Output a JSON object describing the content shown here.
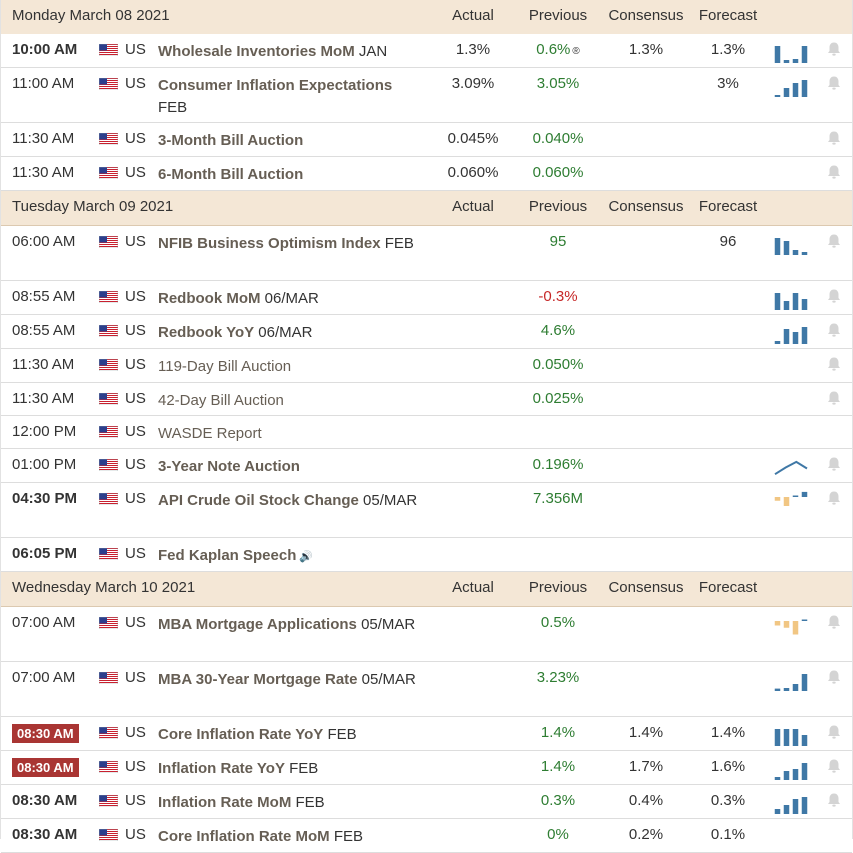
{
  "columns": {
    "actual": "Actual",
    "previous": "Previous",
    "consensus": "Consensus",
    "forecast": "Forecast"
  },
  "revised_mark": "®",
  "rows": [
    {
      "type": "header",
      "date": "Monday March 08 2021"
    },
    {
      "type": "event",
      "time": "10:00 AM",
      "time_style": "bold",
      "country": "US",
      "event": "Wholesale Inventories MoM",
      "ref": "JAN",
      "event_bold": true,
      "actual": "1.3%",
      "previous": "0.6%",
      "revised": true,
      "consensus": "1.3%",
      "forecast": "1.3%",
      "spark": {
        "kind": "bars",
        "color": "#3f78a6",
        "values": [
          0.85,
          0.15,
          0.2,
          0.85
        ]
      },
      "bell": true,
      "h": 34
    },
    {
      "type": "event",
      "time": "11:00 AM",
      "time_style": "normal",
      "country": "US",
      "event": "Consumer Inflation Expectations",
      "ref": "FEB",
      "event_bold": true,
      "actual": "3.09%",
      "previous": "3.05%",
      "consensus": "",
      "forecast": "3%",
      "spark": {
        "kind": "bars",
        "color": "#3f78a6",
        "values": [
          0.1,
          0.45,
          0.7,
          0.85
        ]
      },
      "bell": true,
      "h": 55
    },
    {
      "type": "event",
      "time": "11:30 AM",
      "time_style": "normal",
      "country": "US",
      "event": "3-Month Bill Auction",
      "ref": "",
      "event_bold": true,
      "actual": "0.045%",
      "previous": "0.040%",
      "consensus": "",
      "forecast": "",
      "spark": null,
      "bell": true,
      "h": 34
    },
    {
      "type": "event",
      "time": "11:30 AM",
      "time_style": "normal",
      "country": "US",
      "event": "6-Month Bill Auction",
      "ref": "",
      "event_bold": true,
      "actual": "0.060%",
      "previous": "0.060%",
      "consensus": "",
      "forecast": "",
      "spark": null,
      "bell": true,
      "h": 34
    },
    {
      "type": "header",
      "date": "Tuesday March 09 2021"
    },
    {
      "type": "event",
      "time": "06:00 AM",
      "time_style": "normal",
      "country": "US",
      "event": "NFIB Business Optimism Index",
      "ref": "FEB",
      "event_bold": true,
      "actual": "",
      "previous": "95",
      "consensus": "",
      "forecast": "96",
      "spark": {
        "kind": "bars",
        "color": "#3f78a6",
        "values": [
          0.85,
          0.7,
          0.25,
          0.15
        ]
      },
      "bell": true,
      "h": 55
    },
    {
      "type": "event",
      "time": "08:55 AM",
      "time_style": "normal",
      "country": "US",
      "event": "Redbook MoM",
      "ref": "06/MAR",
      "event_bold": true,
      "actual": "",
      "previous": "-0.3%",
      "previous_neg": true,
      "consensus": "",
      "forecast": "",
      "spark": {
        "kind": "bars",
        "color": "#3f78a6",
        "values": [
          0.85,
          0.45,
          0.85,
          0.55
        ]
      },
      "bell": true,
      "h": 34
    },
    {
      "type": "event",
      "time": "08:55 AM",
      "time_style": "normal",
      "country": "US",
      "event": "Redbook YoY",
      "ref": "06/MAR",
      "event_bold": true,
      "actual": "",
      "previous": "4.6%",
      "consensus": "",
      "forecast": "",
      "spark": {
        "kind": "bars",
        "color": "#3f78a6",
        "values": [
          0.15,
          0.75,
          0.6,
          0.85
        ]
      },
      "bell": true,
      "h": 34
    },
    {
      "type": "event",
      "time": "11:30 AM",
      "time_style": "normal",
      "country": "US",
      "event": "119-Day Bill Auction",
      "ref": "",
      "event_bold": false,
      "actual": "",
      "previous": "0.050%",
      "consensus": "",
      "forecast": "",
      "spark": null,
      "bell": true,
      "h": 34
    },
    {
      "type": "event",
      "time": "11:30 AM",
      "time_style": "normal",
      "country": "US",
      "event": "42-Day Bill Auction",
      "ref": "",
      "event_bold": false,
      "actual": "",
      "previous": "0.025%",
      "consensus": "",
      "forecast": "",
      "spark": null,
      "bell": true,
      "h": 33
    },
    {
      "type": "event",
      "time": "12:00 PM",
      "time_style": "normal",
      "country": "US",
      "event": "WASDE Report",
      "ref": "",
      "event_bold": false,
      "actual": "",
      "previous": "",
      "consensus": "",
      "forecast": "",
      "spark": null,
      "bell": false,
      "h": 33
    },
    {
      "type": "event",
      "time": "01:00 PM",
      "time_style": "normal",
      "country": "US",
      "event": "3-Year Note Auction",
      "ref": "",
      "event_bold": true,
      "actual": "",
      "previous": "0.196%",
      "consensus": "",
      "forecast": "",
      "spark": {
        "kind": "line",
        "color": "#3f78a6",
        "values": [
          0.2,
          0.55,
          0.85,
          0.5
        ]
      },
      "bell": true,
      "h": 34
    },
    {
      "type": "event",
      "time": "04:30 PM",
      "time_style": "bold",
      "country": "US",
      "event": "API Crude Oil Stock Change",
      "ref": "05/MAR",
      "event_bold": true,
      "actual": "",
      "previous": "7.356M",
      "consensus": "",
      "forecast": "",
      "spark": {
        "kind": "updown",
        "color_pos": "#3f78a6",
        "color_neg": "#f1c683",
        "values": [
          -0.25,
          -0.6,
          0.15,
          0.85
        ]
      },
      "bell": true,
      "h": 55
    },
    {
      "type": "event",
      "time": "06:05 PM",
      "time_style": "bold",
      "country": "US",
      "event": "Fed Kaplan Speech",
      "ref": "",
      "event_bold": true,
      "speaker": true,
      "actual": "",
      "previous": "",
      "consensus": "",
      "forecast": "",
      "spark": null,
      "bell": false,
      "h": 34
    },
    {
      "type": "header",
      "date": "Wednesday March 10 2021"
    },
    {
      "type": "event",
      "time": "07:00 AM",
      "time_style": "normal",
      "country": "US",
      "event": "MBA Mortgage Applications",
      "ref": "05/MAR",
      "event_bold": true,
      "actual": "",
      "previous": "0.5%",
      "consensus": "",
      "forecast": "",
      "spark": {
        "kind": "updown",
        "color_pos": "#3f78a6",
        "color_neg": "#f1c683",
        "values": [
          -0.3,
          -0.45,
          -0.9,
          0.12
        ]
      },
      "bell": true,
      "h": 55
    },
    {
      "type": "event",
      "time": "07:00 AM",
      "time_style": "normal",
      "country": "US",
      "event": "MBA 30-Year Mortgage Rate",
      "ref": "05/MAR",
      "event_bold": true,
      "actual": "",
      "previous": "3.23%",
      "consensus": "",
      "forecast": "",
      "spark": {
        "kind": "bars",
        "color": "#3f78a6",
        "values": [
          0.12,
          0.15,
          0.35,
          0.85
        ]
      },
      "bell": true,
      "h": 55
    },
    {
      "type": "event",
      "time": "08:30 AM",
      "time_style": "badge",
      "country": "US",
      "event": "Core Inflation Rate YoY",
      "ref": "FEB",
      "event_bold": true,
      "actual": "",
      "previous": "1.4%",
      "consensus": "1.4%",
      "forecast": "1.4%",
      "spark": {
        "kind": "bars",
        "color": "#3f78a6",
        "values": [
          0.85,
          0.85,
          0.85,
          0.55
        ]
      },
      "bell": true,
      "h": 34
    },
    {
      "type": "event",
      "time": "08:30 AM",
      "time_style": "badge",
      "country": "US",
      "event": "Inflation Rate YoY",
      "ref": "FEB",
      "event_bold": true,
      "actual": "",
      "previous": "1.4%",
      "consensus": "1.7%",
      "forecast": "1.6%",
      "spark": {
        "kind": "bars",
        "color": "#3f78a6",
        "values": [
          0.15,
          0.45,
          0.55,
          0.85
        ]
      },
      "bell": true,
      "h": 34
    },
    {
      "type": "event",
      "time": "08:30 AM",
      "time_style": "bold",
      "country": "US",
      "event": "Inflation Rate MoM",
      "ref": "FEB",
      "event_bold": true,
      "actual": "",
      "previous": "0.3%",
      "consensus": "0.4%",
      "forecast": "0.3%",
      "spark": {
        "kind": "bars",
        "color": "#3f78a6",
        "values": [
          0.25,
          0.45,
          0.75,
          0.85
        ]
      },
      "bell": true,
      "h": 34
    },
    {
      "type": "event",
      "time": "08:30 AM",
      "time_style": "bold",
      "country": "US",
      "event": "Core Inflation Rate MoM",
      "ref": "FEB",
      "event_bold": true,
      "actual": "",
      "previous": "0%",
      "consensus": "0.2%",
      "forecast": "0.1%",
      "spark": null,
      "bell": false,
      "h": 34
    }
  ]
}
